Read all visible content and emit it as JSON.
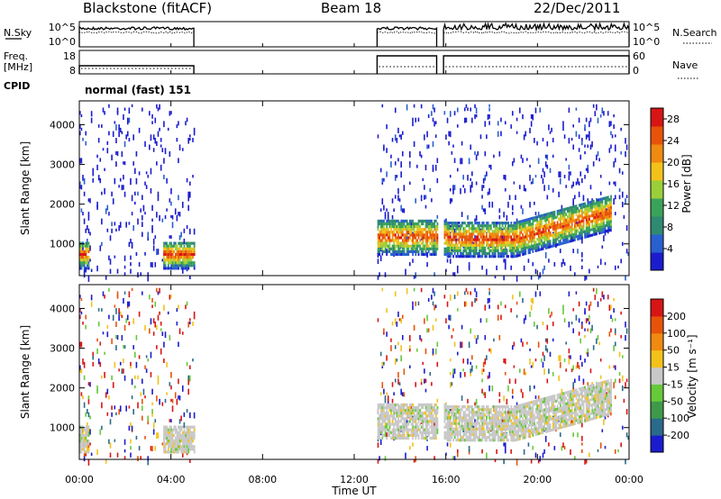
{
  "header": {
    "station": "Blackstone (fitACF)",
    "beam": "Beam 18",
    "date": "22/Dec/2011"
  },
  "summary": {
    "nsky_label": "N.Sky",
    "nsky_ticks": [
      "10^5",
      "10^0"
    ],
    "nsearch_label": "N.Search",
    "nsearch_ticks": [
      "10^5",
      "10^0"
    ],
    "freq_label_1": "Freq.",
    "freq_label_2": "[MHz]",
    "freq_ticks": [
      "18",
      "8"
    ],
    "nave_label": "Nave",
    "nave_ticks": [
      "60",
      "0"
    ],
    "cpid_label": "CPID",
    "cpid_value": "normal (fast) 151"
  },
  "colors": {
    "power": [
      "#1c1ccf",
      "#2a5fd0",
      "#2f8a72",
      "#3aa35a",
      "#9bcf3a",
      "#f2c21a",
      "#f08a10",
      "#e8530a",
      "#d81515"
    ],
    "velocity": [
      "#1c1ccf",
      "#2a6a8a",
      "#3e9a4a",
      "#66c93a",
      "#c8c8c8",
      "#f2c21a",
      "#f08a10",
      "#e8530a",
      "#d81515"
    ]
  },
  "chart_data": [
    {
      "type": "heatmap",
      "quantity": "power",
      "ylabel": "Slant Range [km]",
      "yticks": [
        "1000",
        "2000",
        "3000",
        "4000"
      ],
      "ylim": [
        200,
        4600
      ],
      "xticks": [
        "00:00",
        "04:00",
        "08:00",
        "12:00",
        "16:00",
        "20:00",
        "00:00"
      ],
      "xlim": [
        0,
        24
      ],
      "colorbar_label": "Power [dB]",
      "colorbar_ticks": [
        "4",
        "8",
        "12",
        "16",
        "20",
        "24",
        "28"
      ],
      "colorbar_range": [
        0,
        30
      ],
      "data_intervals_ut": [
        [
          0,
          5
        ],
        [
          13,
          15.6
        ],
        [
          15.9,
          24
        ]
      ]
    },
    {
      "type": "heatmap",
      "quantity": "velocity",
      "ylabel": "Slant Range [km]",
      "yticks": [
        "1000",
        "2000",
        "3000",
        "4000"
      ],
      "ylim": [
        200,
        4600
      ],
      "xticks": [
        "00:00",
        "04:00",
        "08:00",
        "12:00",
        "16:00",
        "20:00",
        "00:00"
      ],
      "xlim": [
        0,
        24
      ],
      "xlabel": "Time UT",
      "colorbar_label": "Velocity [m s⁻¹]",
      "colorbar_ticks": [
        "200",
        "100",
        "50",
        "15",
        "-15",
        "-50",
        "-100",
        "-200"
      ],
      "data_intervals_ut": [
        [
          0,
          5
        ],
        [
          13,
          15.6
        ],
        [
          15.9,
          24
        ]
      ]
    }
  ]
}
